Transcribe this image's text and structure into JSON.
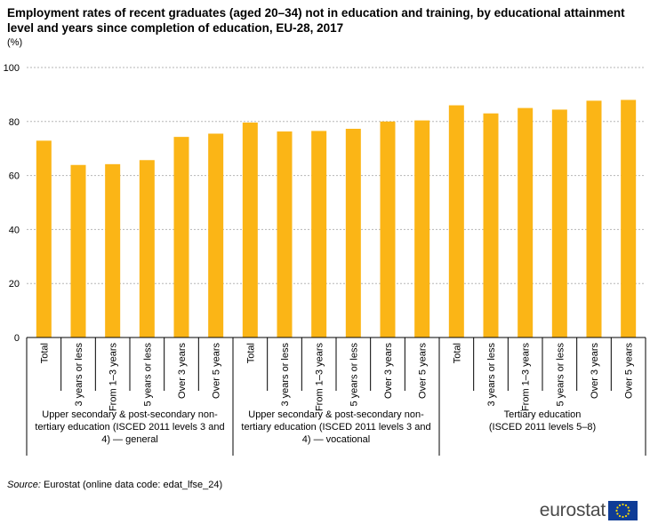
{
  "chart_data": {
    "type": "bar",
    "title": "Employment rates of recent graduates (aged 20–34) not in education and training, by educational attainment level and years since completion of education, EU-28, 2017",
    "unit": "(%)",
    "ylim": [
      0,
      100
    ],
    "yticks": [
      0,
      20,
      40,
      60,
      80,
      100
    ],
    "grid": true,
    "bar_color": "#fbb516",
    "categories": [
      "Total",
      "3 years or less",
      "From 1–3 years",
      "5 years or less",
      "Over 3 years",
      "Over 5 years",
      "Total",
      "3 years or less",
      "From 1–3 years",
      "5 years or less",
      "Over 3 years",
      "Over 5 years",
      "Total",
      "3 years or less",
      "From 1–3 years",
      "5 years or less",
      "Over 3 years",
      "Over 5 years"
    ],
    "values": [
      72.9,
      63.9,
      64.2,
      65.7,
      74.3,
      75.5,
      79.6,
      76.3,
      76.5,
      77.3,
      80.0,
      80.4,
      86.0,
      83.0,
      85.0,
      84.4,
      87.7,
      88.0
    ],
    "groups": [
      {
        "label": "Upper secondary & post-secondary non-tertiary education (ISCED 2011 levels 3 and 4) — general",
        "lines": [
          "Upper secondary & post-secondary non-",
          "tertiary education (ISCED 2011 levels 3 and",
          "4) — general"
        ],
        "start": 0,
        "end": 5
      },
      {
        "label": "Upper secondary & post-secondary non-tertiary education (ISCED 2011 levels 3 and 4) — vocational",
        "lines": [
          "Upper secondary & post-secondary non-",
          "tertiary education (ISCED 2011 levels 3 and",
          "4) — vocational"
        ],
        "start": 6,
        "end": 11
      },
      {
        "label": "Tertiary education (ISCED 2011 levels 5–8)",
        "lines": [
          "Tertiary education",
          "(ISCED 2011 levels 5–8)"
        ],
        "start": 12,
        "end": 17
      }
    ]
  },
  "source": {
    "label": "Source:",
    "text": "Eurostat (online data code: edat_lfse_24)"
  },
  "logo": {
    "text": "eurostat",
    "flag_color": "#0f3c96",
    "star_color": "#ffdd00"
  }
}
